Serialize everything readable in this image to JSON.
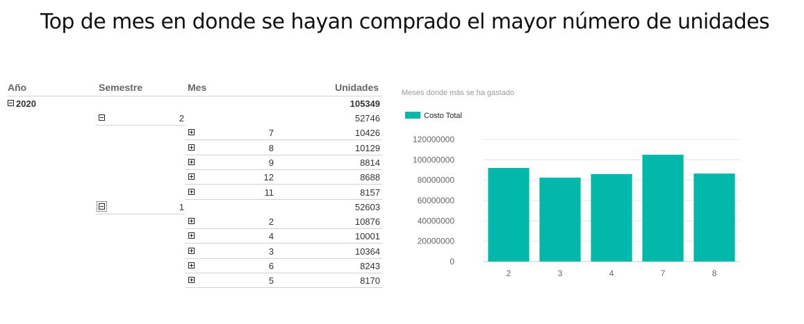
{
  "page": {
    "title": "Top de mes en donde se hayan comprado el mayor número de unidades"
  },
  "pivot": {
    "headers": {
      "year": "Año",
      "semester": "Semestre",
      "month": "Mes",
      "units": "Unidades"
    },
    "year": {
      "label": "2020",
      "total": "105349"
    },
    "semesters": [
      {
        "label": "2",
        "total": "52746",
        "months": [
          {
            "month": "7",
            "units": "10426"
          },
          {
            "month": "8",
            "units": "10129"
          },
          {
            "month": "9",
            "units": "8814"
          },
          {
            "month": "12",
            "units": "8688"
          },
          {
            "month": "11",
            "units": "8157"
          }
        ]
      },
      {
        "label": "1",
        "total": "52603",
        "months": [
          {
            "month": "2",
            "units": "10876"
          },
          {
            "month": "4",
            "units": "10001"
          },
          {
            "month": "3",
            "units": "10364"
          },
          {
            "month": "6",
            "units": "8243"
          },
          {
            "month": "5",
            "units": "8170"
          }
        ]
      }
    ]
  },
  "chart_data": {
    "type": "bar",
    "title": "Meses donde más se ha gastado",
    "categories": [
      "2",
      "3",
      "4",
      "7",
      "8"
    ],
    "series": [
      {
        "name": "Costo Total",
        "values": [
          92000000,
          82500000,
          86000000,
          105000000,
          86500000
        ]
      }
    ],
    "ylim": [
      0,
      120000000
    ],
    "yticks": [
      "0",
      "20000000",
      "40000000",
      "60000000",
      "80000000",
      "100000000",
      "120000000"
    ],
    "grid": true,
    "legend": "top-left",
    "color": "#01B8AA"
  }
}
